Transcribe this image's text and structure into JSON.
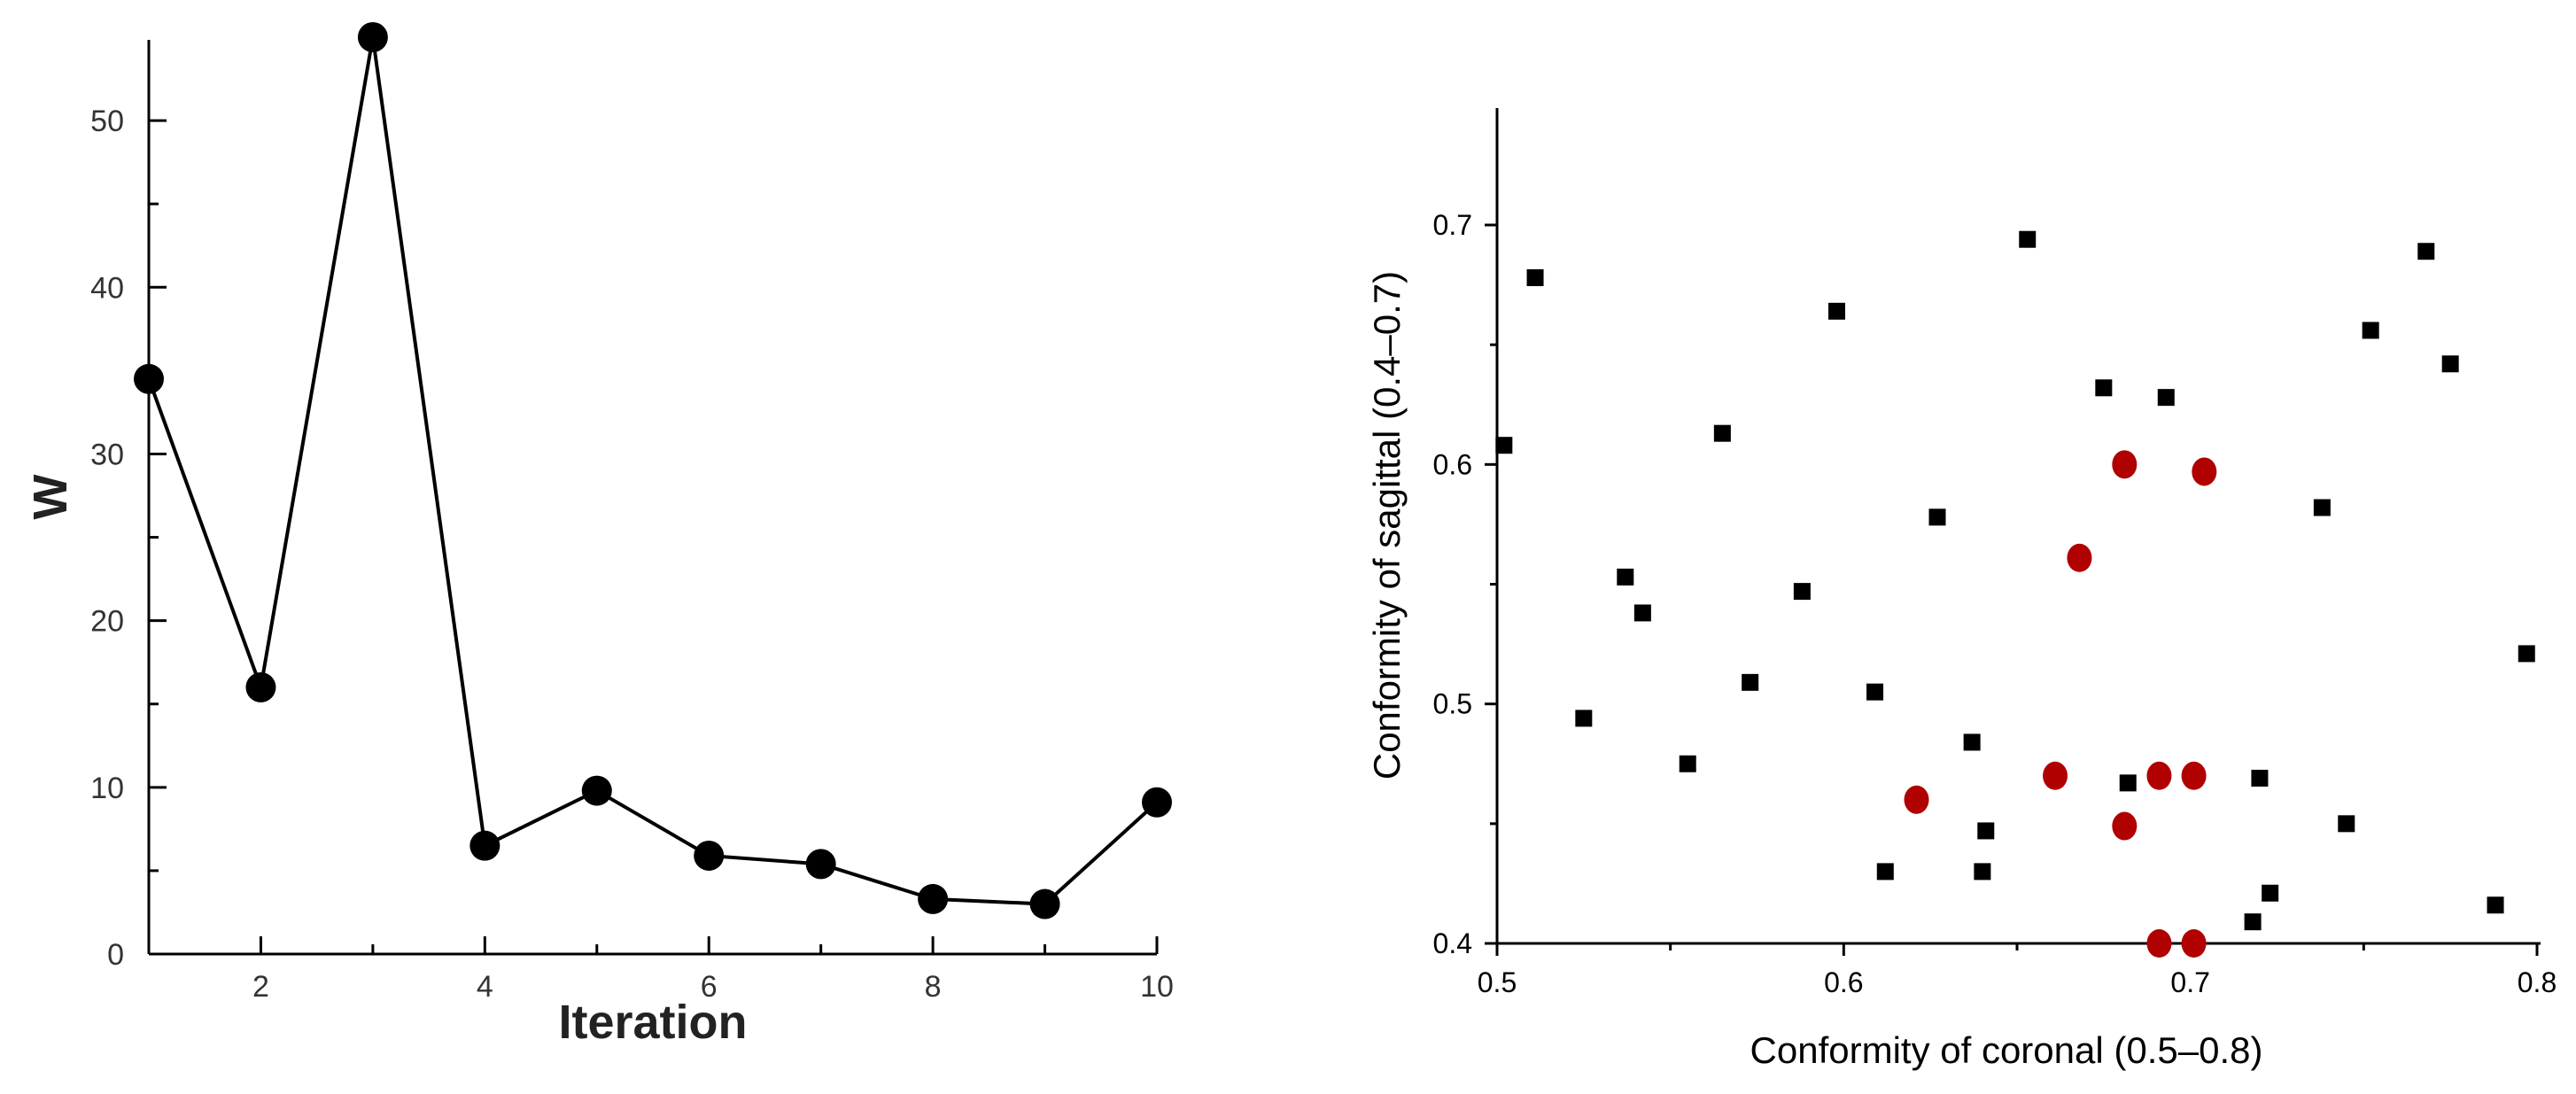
{
  "chart_data": [
    {
      "type": "line",
      "title": "",
      "xlabel": "Iteration",
      "ylabel": "W",
      "x": [
        1,
        2,
        3,
        4,
        5,
        6,
        7,
        8,
        9,
        10
      ],
      "y": [
        34.5,
        16,
        55,
        6.5,
        9.8,
        5.9,
        5.4,
        3.3,
        3.0,
        9.1
      ],
      "xlim": [
        1,
        10
      ],
      "ylim": [
        0,
        55
      ],
      "xticks": [
        "2",
        "4",
        "6",
        "8",
        "10"
      ],
      "yticks": [
        "0",
        "10",
        "20",
        "30",
        "40",
        "50"
      ],
      "marker": "circle",
      "color": "#000000"
    },
    {
      "type": "scatter",
      "title": "",
      "xlabel": "Conformity of coronal (0.5–0.8)",
      "ylabel": "Conformity of sagittal (0.4–0.7)",
      "xlim": [
        0.5,
        0.8
      ],
      "ylim": [
        0.4,
        0.75
      ],
      "xticks": [
        "0.5",
        "0.6",
        "0.7",
        "0.8"
      ],
      "yticks": [
        "0.4",
        "0.5",
        "0.6",
        "0.7"
      ],
      "series": [
        {
          "name": "squares",
          "marker": "square",
          "color": "#000000",
          "points": [
            [
              0.502,
              0.608
            ],
            [
              0.511,
              0.678
            ],
            [
              0.525,
              0.494
            ],
            [
              0.537,
              0.553
            ],
            [
              0.542,
              0.538
            ],
            [
              0.555,
              0.475
            ],
            [
              0.565,
              0.613
            ],
            [
              0.573,
              0.509
            ],
            [
              0.588,
              0.547
            ],
            [
              0.598,
              0.664
            ],
            [
              0.609,
              0.505
            ],
            [
              0.612,
              0.43
            ],
            [
              0.627,
              0.578
            ],
            [
              0.637,
              0.484
            ],
            [
              0.64,
              0.43
            ],
            [
              0.641,
              0.447
            ],
            [
              0.653,
              0.694
            ],
            [
              0.675,
              0.632
            ],
            [
              0.682,
              0.467
            ],
            [
              0.693,
              0.628
            ],
            [
              0.718,
              0.409
            ],
            [
              0.72,
              0.469
            ],
            [
              0.723,
              0.421
            ],
            [
              0.738,
              0.582
            ],
            [
              0.745,
              0.45
            ],
            [
              0.752,
              0.656
            ],
            [
              0.768,
              0.689
            ],
            [
              0.775,
              0.642
            ],
            [
              0.788,
              0.416
            ],
            [
              0.797,
              0.521
            ]
          ]
        },
        {
          "name": "circles",
          "marker": "circle",
          "color": "#b00000",
          "points": [
            [
              0.621,
              0.46
            ],
            [
              0.661,
              0.47
            ],
            [
              0.668,
              0.561
            ],
            [
              0.681,
              0.6
            ],
            [
              0.681,
              0.449
            ],
            [
              0.691,
              0.47
            ],
            [
              0.701,
              0.47
            ],
            [
              0.704,
              0.597
            ],
            [
              0.691,
              0.4
            ],
            [
              0.701,
              0.4
            ]
          ]
        }
      ]
    }
  ]
}
